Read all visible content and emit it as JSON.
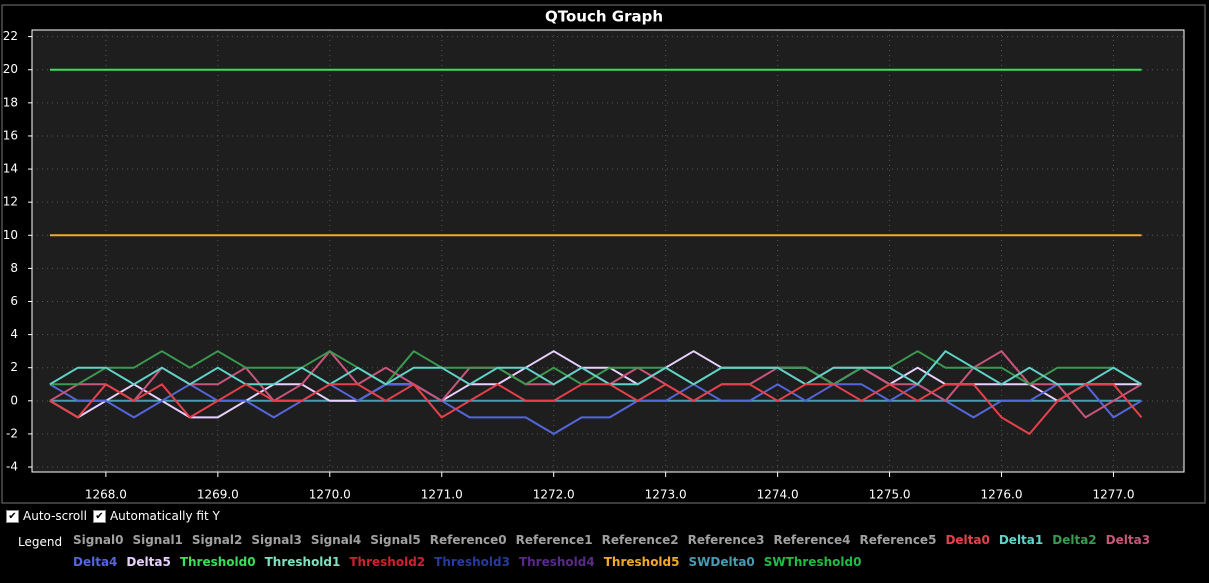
{
  "chart_data": {
    "type": "line",
    "title": "QTouch Graph",
    "x": [
      1267.5,
      1267.75,
      1268,
      1268.25,
      1268.5,
      1268.75,
      1269,
      1269.25,
      1269.5,
      1269.75,
      1270,
      1270.25,
      1270.5,
      1270.75,
      1271,
      1271.25,
      1271.5,
      1271.75,
      1272,
      1272.25,
      1272.5,
      1272.75,
      1273,
      1273.25,
      1273.5,
      1273.75,
      1274,
      1274.25,
      1274.5,
      1274.75,
      1275,
      1275.25,
      1275.5,
      1275.75,
      1276,
      1276.25,
      1276.5,
      1276.75,
      1277,
      1277.25
    ],
    "xlim": [
      1267.34,
      1277.63
    ],
    "xticks": [
      {
        "value": 1268,
        "label": "1268.0"
      },
      {
        "value": 1269,
        "label": "1269.0"
      },
      {
        "value": 1270,
        "label": "1270.0"
      },
      {
        "value": 1271,
        "label": "1271.0"
      },
      {
        "value": 1272,
        "label": "1272.0"
      },
      {
        "value": 1273,
        "label": "1273.0"
      },
      {
        "value": 1274,
        "label": "1274.0"
      },
      {
        "value": 1275,
        "label": "1275.0"
      },
      {
        "value": 1276,
        "label": "1276.0"
      },
      {
        "value": 1277,
        "label": "1277.0"
      }
    ],
    "ylim": [
      -4.3,
      22.4
    ],
    "yticks": [
      -4,
      -2,
      0,
      2,
      4,
      6,
      8,
      10,
      12,
      14,
      16,
      18,
      20,
      22
    ],
    "grid": true,
    "legend_label": "Legend",
    "series": [
      {
        "name": "Signal0",
        "color": "#a0a0a0"
      },
      {
        "name": "Signal1",
        "color": "#a0a0a0"
      },
      {
        "name": "Signal2",
        "color": "#a0a0a0"
      },
      {
        "name": "Signal3",
        "color": "#a0a0a0"
      },
      {
        "name": "Signal4",
        "color": "#a0a0a0"
      },
      {
        "name": "Signal5",
        "color": "#a0a0a0"
      },
      {
        "name": "Reference0",
        "color": "#a0a0a0"
      },
      {
        "name": "Reference1",
        "color": "#a0a0a0"
      },
      {
        "name": "Reference2",
        "color": "#a0a0a0"
      },
      {
        "name": "Reference3",
        "color": "#a0a0a0"
      },
      {
        "name": "Reference4",
        "color": "#a0a0a0"
      },
      {
        "name": "Reference5",
        "color": "#a0a0a0"
      },
      {
        "name": "Delta0",
        "color": "#e8404a",
        "values": [
          0,
          -1,
          1,
          0,
          1,
          -1,
          0,
          1,
          0,
          0,
          1,
          1,
          0,
          1,
          -1,
          0,
          1,
          0,
          0,
          1,
          1,
          0,
          1,
          0,
          1,
          1,
          0,
          1,
          1,
          0,
          1,
          0,
          1,
          1,
          -1,
          -2,
          0,
          1,
          1,
          -1
        ]
      },
      {
        "name": "Delta1",
        "color": "#5fd3c8",
        "values": [
          1,
          2,
          2,
          1,
          2,
          1,
          2,
          1,
          1,
          2,
          1,
          2,
          1,
          2,
          2,
          1,
          2,
          2,
          1,
          2,
          1,
          1,
          2,
          1,
          2,
          2,
          2,
          1,
          2,
          2,
          2,
          1,
          3,
          2,
          1,
          2,
          1,
          1,
          2,
          1
        ]
      },
      {
        "name": "Delta2",
        "color": "#3a9a50",
        "values": [
          1,
          1,
          2,
          2,
          3,
          2,
          3,
          2,
          2,
          2,
          3,
          2,
          1,
          3,
          2,
          2,
          2,
          1,
          2,
          1,
          2,
          2,
          2,
          1,
          2,
          2,
          2,
          2,
          1,
          2,
          2,
          3,
          2,
          2,
          2,
          1,
          2,
          2,
          2,
          1
        ]
      },
      {
        "name": "Delta3",
        "color": "#c8557a",
        "values": [
          0,
          1,
          1,
          0,
          2,
          1,
          1,
          2,
          0,
          1,
          3,
          1,
          2,
          1,
          0,
          2,
          2,
          1,
          1,
          2,
          1,
          2,
          1,
          0,
          1,
          1,
          2,
          1,
          2,
          2,
          1,
          1,
          0,
          2,
          3,
          1,
          1,
          -1,
          0,
          1
        ]
      },
      {
        "name": "Delta4",
        "color": "#5566dd",
        "values": [
          1,
          0,
          0,
          -1,
          0,
          1,
          0,
          0,
          -1,
          0,
          1,
          0,
          1,
          1,
          0,
          -1,
          -1,
          -1,
          -2,
          -1,
          -1,
          0,
          0,
          1,
          0,
          0,
          1,
          0,
          1,
          1,
          0,
          1,
          0,
          -1,
          0,
          0,
          1,
          1,
          -1,
          0
        ]
      },
      {
        "name": "Delta5",
        "color": "#e8d0ff",
        "values": [
          0,
          -1,
          0,
          1,
          0,
          -1,
          -1,
          0,
          1,
          1,
          0,
          0,
          1,
          1,
          0,
          1,
          1,
          2,
          3,
          2,
          2,
          1,
          2,
          3,
          2,
          2,
          2,
          2,
          1,
          2,
          1,
          2,
          1,
          1,
          1,
          1,
          0,
          1,
          1,
          1
        ]
      },
      {
        "name": "Threshold0",
        "color": "#3ddc5a",
        "values": [
          20,
          20,
          20,
          20,
          20,
          20,
          20,
          20,
          20,
          20,
          20,
          20,
          20,
          20,
          20,
          20,
          20,
          20,
          20,
          20,
          20,
          20,
          20,
          20,
          20,
          20,
          20,
          20,
          20,
          20,
          20,
          20,
          20,
          20,
          20,
          20,
          20,
          20,
          20,
          20
        ]
      },
      {
        "name": "Threshold1",
        "color": "#7fe0c0"
      },
      {
        "name": "Threshold2",
        "color": "#d02030"
      },
      {
        "name": "Threshold3",
        "color": "#283a9a"
      },
      {
        "name": "Threshold4",
        "color": "#5a2a8a"
      },
      {
        "name": "Threshold5",
        "color": "#f0a830",
        "values": [
          10,
          10,
          10,
          10,
          10,
          10,
          10,
          10,
          10,
          10,
          10,
          10,
          10,
          10,
          10,
          10,
          10,
          10,
          10,
          10,
          10,
          10,
          10,
          10,
          10,
          10,
          10,
          10,
          10,
          10,
          10,
          10,
          10,
          10,
          10,
          10,
          10,
          10,
          10,
          10
        ]
      },
      {
        "name": "SWDelta0",
        "color": "#4a9ab0",
        "values": [
          0,
          0,
          0,
          0,
          0,
          0,
          0,
          0,
          0,
          0,
          0,
          0,
          0,
          0,
          0,
          0,
          0,
          0,
          0,
          0,
          0,
          0,
          0,
          0,
          0,
          0,
          0,
          0,
          0,
          0,
          0,
          0,
          0,
          0,
          0,
          0,
          0,
          0,
          0,
          0
        ]
      },
      {
        "name": "SWThreshold0",
        "color": "#22bb44"
      }
    ]
  },
  "controls": [
    {
      "label": "Auto-scroll",
      "checked": true
    },
    {
      "label": "Automatically fit Y",
      "checked": true
    }
  ]
}
